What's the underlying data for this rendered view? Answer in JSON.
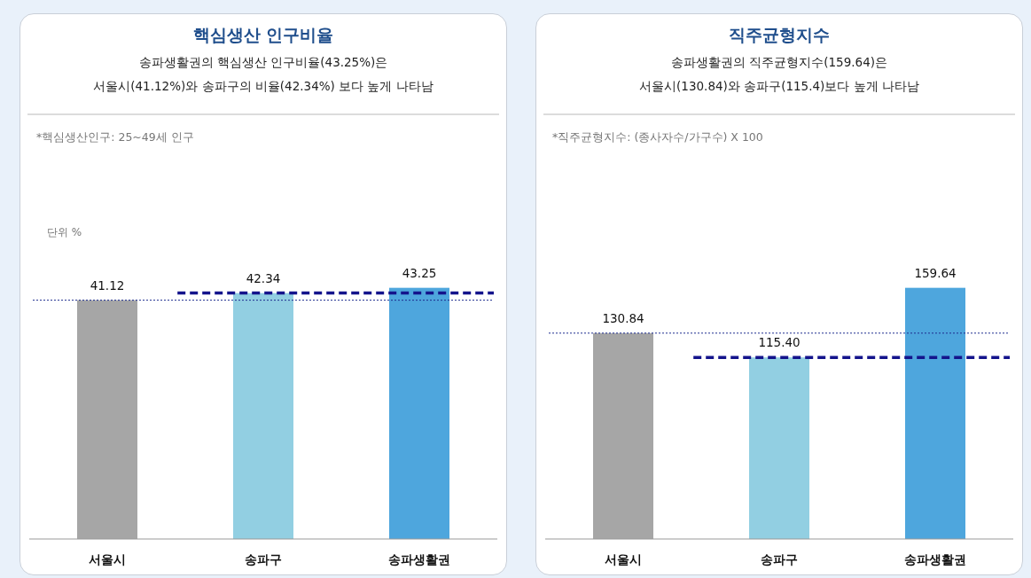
{
  "chart_data": [
    {
      "type": "bar",
      "title": "핵심생산 인구비율",
      "subtitle": "송파생활권의 핵심생산 인구비율(43.25%)은\n서울시(41.12%)와 송파구의 비율(42.34%) 보다 높게 나타남",
      "annotations": [
        "*핵심생산인구:  25~49세 인구",
        "단위 %"
      ],
      "categories": [
        "서울시",
        "송파구",
        "송파생활권"
      ],
      "values": [
        41.12,
        42.34,
        43.25
      ],
      "colors": [
        "#a6a6a6",
        "#92cfe2",
        "#4ea6dd"
      ],
      "value_labels": [
        "41.12",
        "42.34",
        "43.25"
      ],
      "ref_lines": [
        {
          "axis": "y",
          "value": 41.12,
          "color": "#1f2f8f",
          "line_style": "dotted"
        },
        {
          "axis": "y",
          "value": 42.34,
          "color": "#14148c",
          "line_style": "dashed"
        }
      ]
    },
    {
      "type": "bar",
      "title": "직주균형지수",
      "subtitle": "송파생활권의 직주균형지수(159.64)은\n서울시(130.84)와 송파구(115.4)보다 높게 나타남",
      "annotations": [
        "*직주균형지수:  (종사자수/가구수) X 100"
      ],
      "categories": [
        "서울시",
        "송파구",
        "송파생활권"
      ],
      "values": [
        130.84,
        115.4,
        159.64
      ],
      "colors": [
        "#a6a6a6",
        "#92cfe2",
        "#4ea6dd"
      ],
      "value_labels": [
        "130.84",
        "115.40",
        "159.64"
      ],
      "ref_lines": [
        {
          "axis": "y",
          "value": 130.84,
          "color": "#1f2f8f",
          "line_style": "dotted"
        },
        {
          "axis": "y",
          "value": 115.4,
          "color": "#14148c",
          "line_style": "dashed"
        }
      ]
    }
  ]
}
